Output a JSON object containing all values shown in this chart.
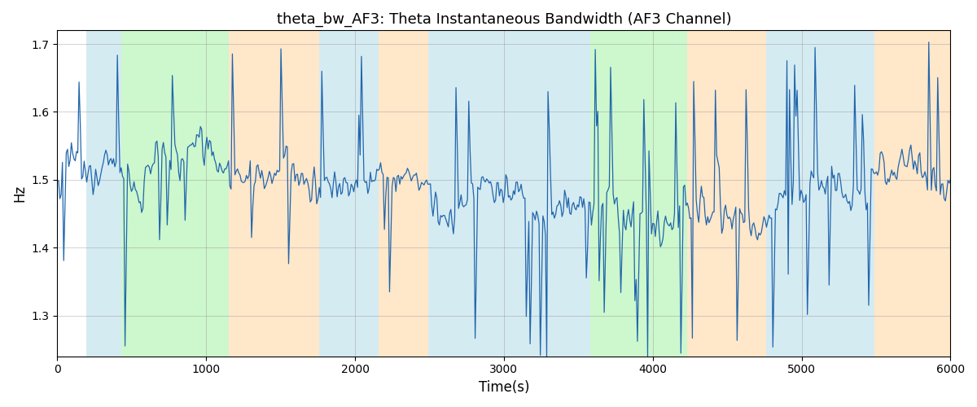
{
  "title": "theta_bw_AF3: Theta Instantaneous Bandwidth (AF3 Channel)",
  "xlabel": "Time(s)",
  "ylabel": "Hz",
  "xlim": [
    0,
    6000
  ],
  "ylim": [
    1.24,
    1.72
  ],
  "yticks": [
    1.3,
    1.4,
    1.5,
    1.6,
    1.7
  ],
  "xticks": [
    0,
    1000,
    2000,
    3000,
    4000,
    5000,
    6000
  ],
  "bg_regions": [
    {
      "xstart": 195,
      "xend": 430,
      "color": "#add8e6",
      "alpha": 0.5
    },
    {
      "xstart": 430,
      "xend": 1150,
      "color": "#90ee90",
      "alpha": 0.45
    },
    {
      "xstart": 1150,
      "xend": 1760,
      "color": "#ffd8a8",
      "alpha": 0.6
    },
    {
      "xstart": 1760,
      "xend": 2160,
      "color": "#add8e6",
      "alpha": 0.5
    },
    {
      "xstart": 2160,
      "xend": 2490,
      "color": "#ffd8a8",
      "alpha": 0.6
    },
    {
      "xstart": 2490,
      "xend": 3460,
      "color": "#add8e6",
      "alpha": 0.5
    },
    {
      "xstart": 3460,
      "xend": 3580,
      "color": "#add8e6",
      "alpha": 0.5
    },
    {
      "xstart": 3580,
      "xend": 4230,
      "color": "#90ee90",
      "alpha": 0.45
    },
    {
      "xstart": 4230,
      "xend": 4760,
      "color": "#ffd8a8",
      "alpha": 0.6
    },
    {
      "xstart": 4760,
      "xend": 5490,
      "color": "#add8e6",
      "alpha": 0.5
    },
    {
      "xstart": 5490,
      "xend": 6000,
      "color": "#ffd8a8",
      "alpha": 0.6
    }
  ],
  "signal_color": "#2166ac",
  "signal_linewidth": 0.9,
  "seed": 17,
  "n_points": 700,
  "base_value": 1.5,
  "figsize": [
    12,
    5
  ],
  "dpi": 100
}
